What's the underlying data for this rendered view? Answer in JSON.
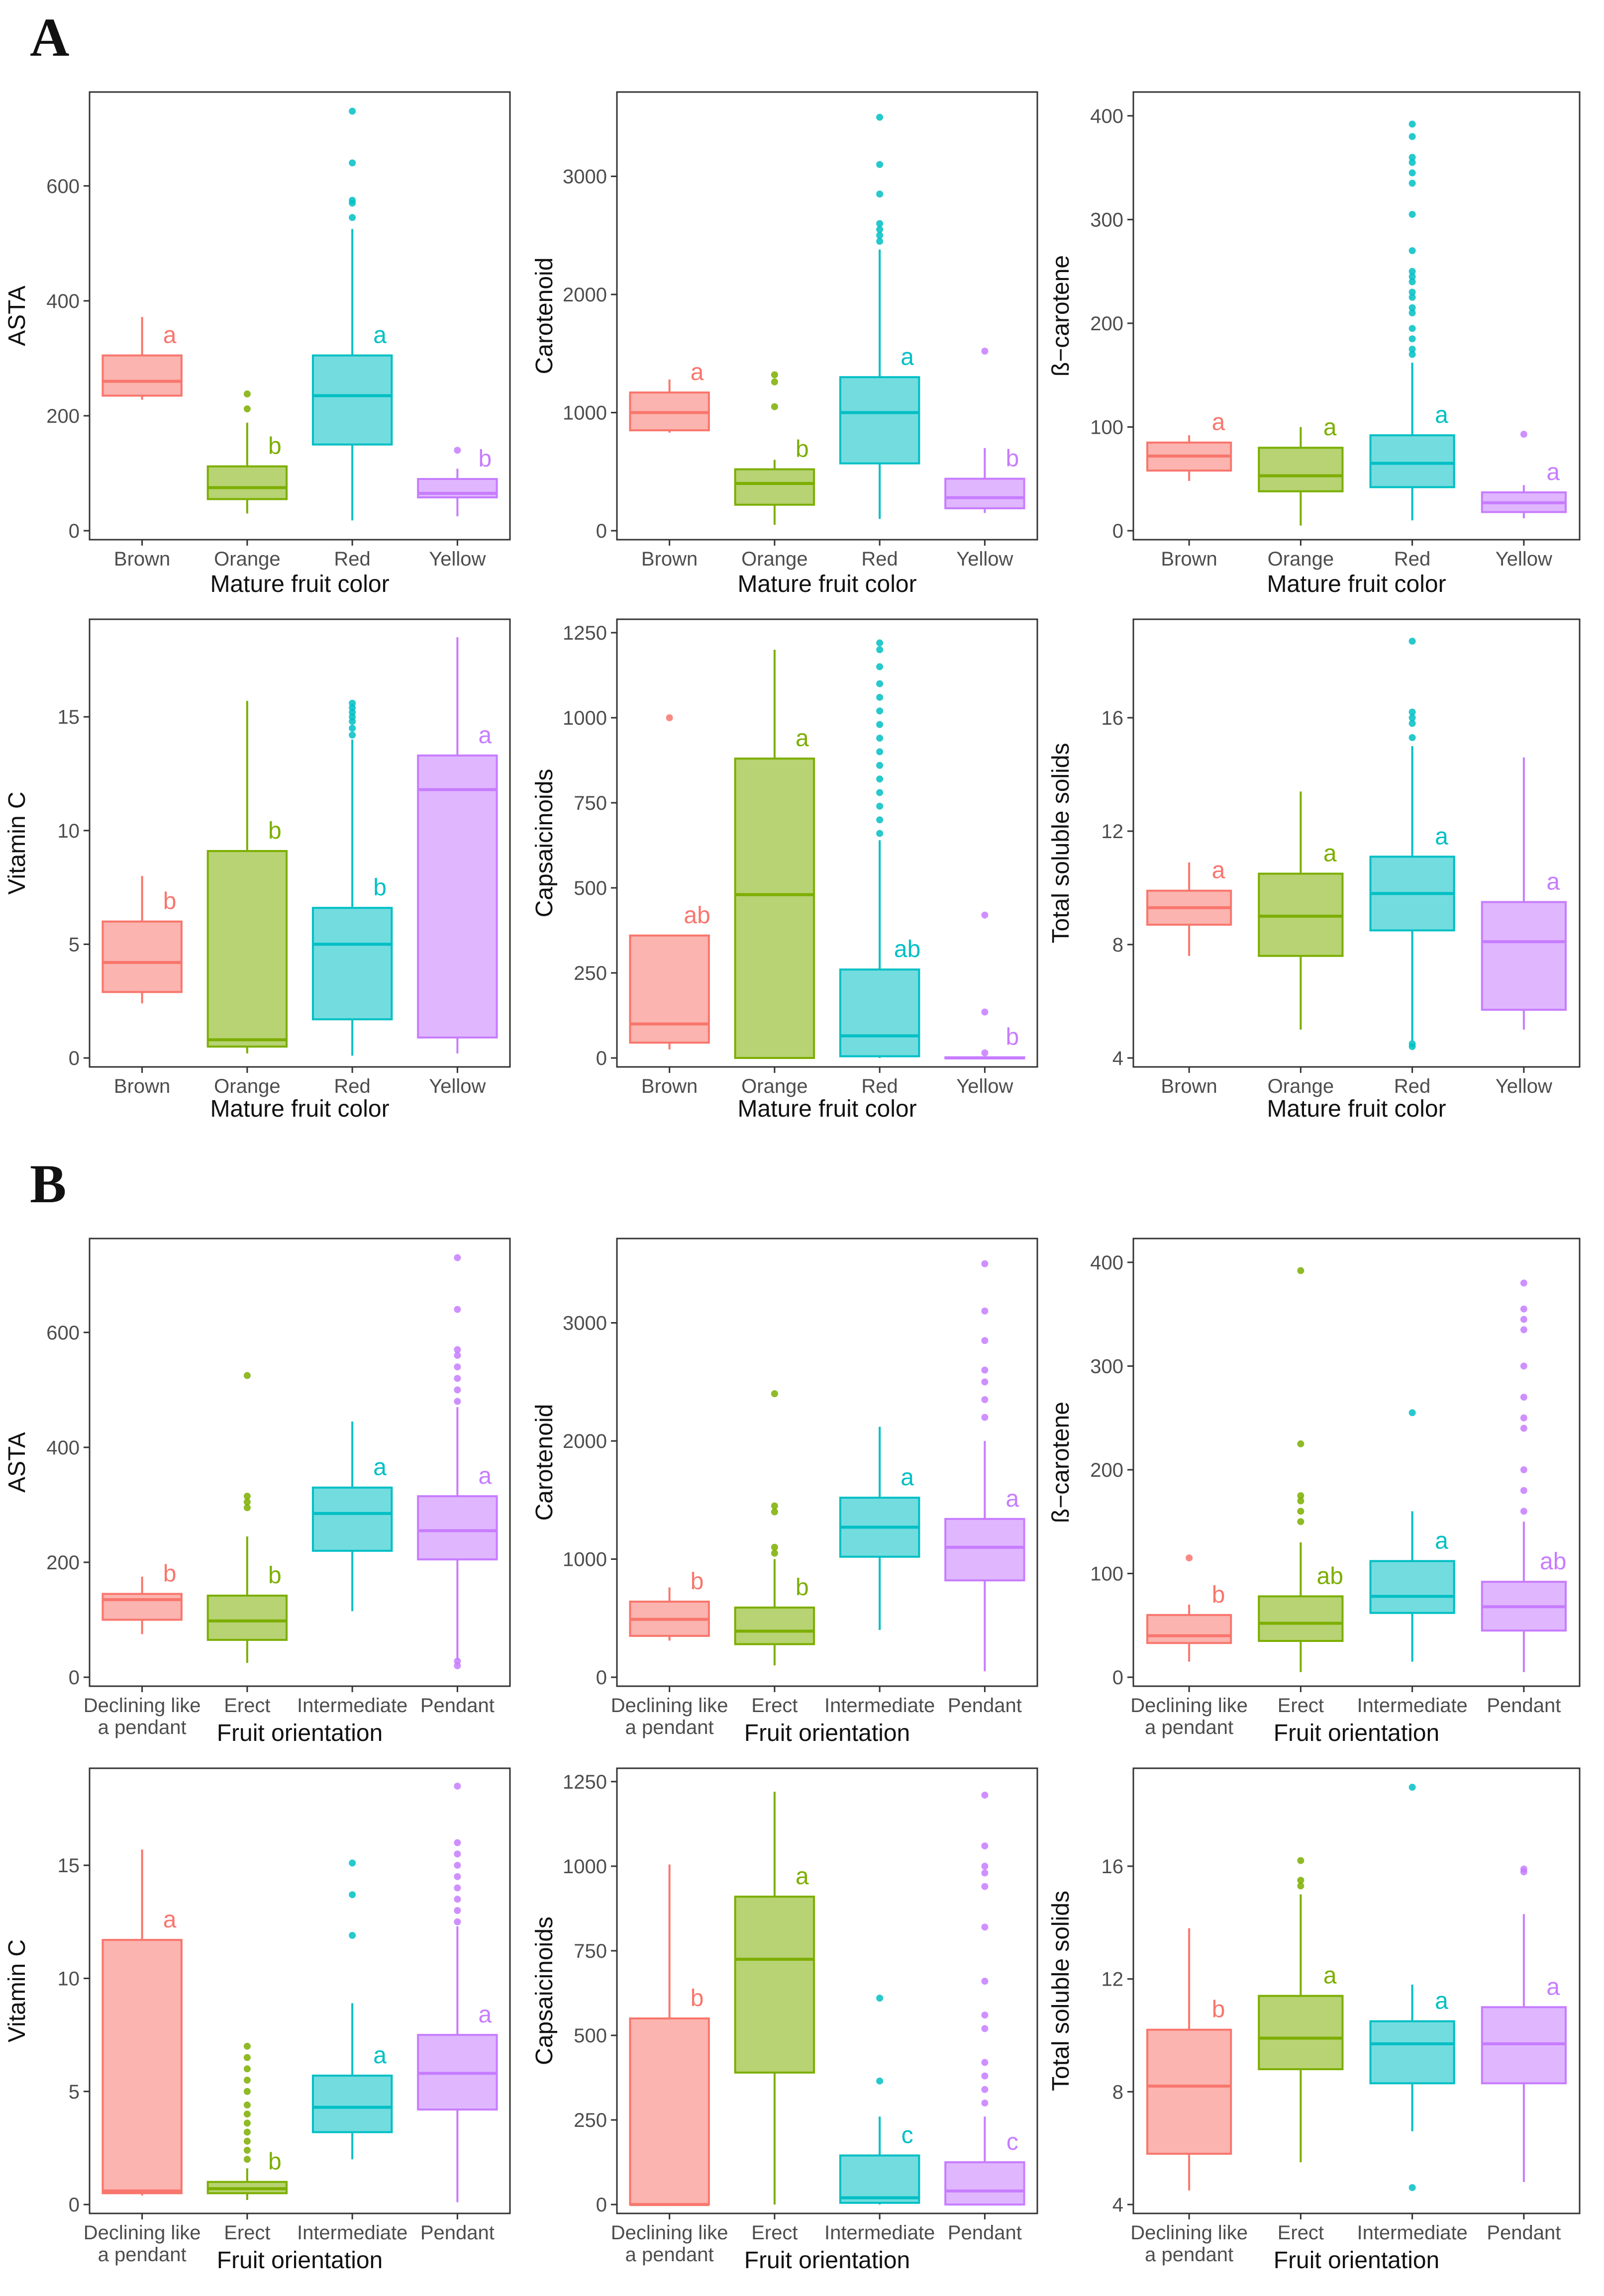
{
  "figure": {
    "colors": {
      "Brown": "#F8766D",
      "Orange": "#7CAE00",
      "Red": "#00BFC4",
      "Yellow": "#C77CFF"
    },
    "orientation_colors": {
      "Declining like a pendant": "#F8766D",
      "Erect": "#7CAE00",
      "Intermediate": "#00BFC4",
      "Pendant": "#C77CFF"
    }
  },
  "panels": [
    {
      "label": "A",
      "xlabel": "Mature fruit color"
    },
    {
      "label": "B",
      "xlabel": "Fruit orientation"
    }
  ],
  "chart_data": [
    {
      "type": "box",
      "panel": "A",
      "title": "",
      "ylabel": "ASTA",
      "xlabel": "Mature fruit color",
      "ylim": [
        0,
        740
      ],
      "yticks": [
        0,
        200,
        400,
        600
      ],
      "categories": [
        "Brown",
        "Orange",
        "Red",
        "Yellow"
      ],
      "boxes": [
        {
          "q1": 235,
          "median": 260,
          "q3": 305,
          "lo": 228,
          "hi": 372,
          "outliers": [],
          "letter": "a"
        },
        {
          "q1": 55,
          "median": 75,
          "q3": 112,
          "lo": 30,
          "hi": 188,
          "outliers": [
            212,
            238
          ],
          "letter": "b"
        },
        {
          "q1": 150,
          "median": 235,
          "q3": 305,
          "lo": 18,
          "hi": 525,
          "outliers": [
            545,
            570,
            575,
            640,
            730
          ],
          "letter": "a"
        },
        {
          "q1": 58,
          "median": 65,
          "q3": 90,
          "lo": 25,
          "hi": 108,
          "outliers": [
            140
          ],
          "letter": "b"
        }
      ]
    },
    {
      "type": "box",
      "panel": "A",
      "title": "",
      "ylabel": "Carotenoid",
      "xlabel": "Mature fruit color",
      "ylim": [
        0,
        3600
      ],
      "yticks": [
        0,
        1000,
        2000,
        3000
      ],
      "categories": [
        "Brown",
        "Orange",
        "Red",
        "Yellow"
      ],
      "boxes": [
        {
          "q1": 850,
          "median": 1000,
          "q3": 1170,
          "lo": 830,
          "hi": 1280,
          "outliers": [],
          "letter": "a"
        },
        {
          "q1": 220,
          "median": 400,
          "q3": 520,
          "lo": 50,
          "hi": 600,
          "outliers": [
            1050,
            1260,
            1320
          ],
          "letter": "b"
        },
        {
          "q1": 570,
          "median": 1000,
          "q3": 1300,
          "lo": 100,
          "hi": 2380,
          "outliers": [
            2450,
            2500,
            2550,
            2600,
            2850,
            3100,
            3500
          ],
          "letter": "a"
        },
        {
          "q1": 190,
          "median": 280,
          "q3": 440,
          "lo": 150,
          "hi": 700,
          "outliers": [
            1520
          ],
          "letter": "b"
        }
      ]
    },
    {
      "type": "box",
      "panel": "A",
      "title": "",
      "ylabel": "ß−carotene",
      "xlabel": "Mature fruit color",
      "ylim": [
        0,
        410
      ],
      "yticks": [
        0,
        100,
        200,
        300,
        400
      ],
      "categories": [
        "Brown",
        "Orange",
        "Red",
        "Yellow"
      ],
      "boxes": [
        {
          "q1": 58,
          "median": 72,
          "q3": 85,
          "lo": 48,
          "hi": 92,
          "outliers": [],
          "letter": "a"
        },
        {
          "q1": 38,
          "median": 53,
          "q3": 80,
          "lo": 5,
          "hi": 100,
          "outliers": [],
          "letter": "a"
        },
        {
          "q1": 42,
          "median": 65,
          "q3": 92,
          "lo": 10,
          "hi": 162,
          "outliers": [
            170,
            175,
            185,
            195,
            210,
            215,
            225,
            230,
            240,
            245,
            250,
            270,
            305,
            335,
            345,
            355,
            360,
            380,
            392
          ],
          "letter": "a"
        },
        {
          "q1": 18,
          "median": 27,
          "q3": 37,
          "lo": 12,
          "hi": 44,
          "outliers": [
            93
          ],
          "letter": "a"
        }
      ]
    },
    {
      "type": "box",
      "panel": "A",
      "title": "",
      "ylabel": "Vitamin C",
      "xlabel": "Mature fruit color",
      "ylim": [
        0,
        18.7
      ],
      "yticks": [
        0,
        5,
        10,
        15
      ],
      "categories": [
        "Brown",
        "Orange",
        "Red",
        "Yellow"
      ],
      "boxes": [
        {
          "q1": 2.9,
          "median": 4.2,
          "q3": 6.0,
          "lo": 2.4,
          "hi": 8.0,
          "outliers": [],
          "letter": "b"
        },
        {
          "q1": 0.5,
          "median": 0.8,
          "q3": 9.1,
          "lo": 0.2,
          "hi": 15.7,
          "outliers": [],
          "letter": "b"
        },
        {
          "q1": 1.7,
          "median": 5.0,
          "q3": 6.6,
          "lo": 0.1,
          "hi": 14.0,
          "outliers": [
            14.2,
            14.5,
            14.8,
            15.0,
            15.2,
            15.4,
            15.6
          ],
          "letter": "b"
        },
        {
          "q1": 0.9,
          "median": 11.8,
          "q3": 13.3,
          "lo": 0.2,
          "hi": 18.5,
          "outliers": [],
          "letter": "a"
        }
      ]
    },
    {
      "type": "box",
      "panel": "A",
      "title": "",
      "ylabel": "Capsaicinoids",
      "xlabel": "Mature fruit color",
      "ylim": [
        0,
        1250
      ],
      "yticks": [
        0,
        250,
        500,
        750,
        1000,
        1250
      ],
      "categories": [
        "Brown",
        "Orange",
        "Red",
        "Yellow"
      ],
      "boxes": [
        {
          "q1": 45,
          "median": 100,
          "q3": 360,
          "lo": 25,
          "hi": 360,
          "outliers": [
            1000
          ],
          "letter": "ab"
        },
        {
          "q1": 0,
          "median": 480,
          "q3": 880,
          "lo": 0,
          "hi": 1200,
          "outliers": [],
          "letter": "a"
        },
        {
          "q1": 5,
          "median": 65,
          "q3": 260,
          "lo": 0,
          "hi": 640,
          "outliers": [
            660,
            700,
            740,
            780,
            820,
            860,
            900,
            940,
            980,
            1020,
            1060,
            1100,
            1150,
            1200,
            1220
          ],
          "letter": "ab"
        },
        {
          "q1": 0,
          "median": 0,
          "q3": 2,
          "lo": 0,
          "hi": 5,
          "outliers": [
            15,
            135,
            420
          ],
          "letter": "b"
        }
      ]
    },
    {
      "type": "box",
      "panel": "A",
      "title": "",
      "ylabel": "Total soluble solids",
      "xlabel": "Mature fruit color",
      "ylim": [
        4,
        19
      ],
      "yticks": [
        4,
        8,
        12,
        16
      ],
      "categories": [
        "Brown",
        "Orange",
        "Red",
        "Yellow"
      ],
      "boxes": [
        {
          "q1": 8.7,
          "median": 9.3,
          "q3": 9.9,
          "lo": 7.6,
          "hi": 10.9,
          "outliers": [],
          "letter": "a"
        },
        {
          "q1": 7.6,
          "median": 9.0,
          "q3": 10.5,
          "lo": 5.0,
          "hi": 13.4,
          "outliers": [],
          "letter": "a"
        },
        {
          "q1": 8.5,
          "median": 9.8,
          "q3": 11.1,
          "lo": 4.6,
          "hi": 15.0,
          "outliers": [
            4.4,
            4.5,
            15.3,
            15.8,
            16.0,
            16.2,
            18.7
          ],
          "letter": "a"
        },
        {
          "q1": 5.7,
          "median": 8.1,
          "q3": 9.5,
          "lo": 5.0,
          "hi": 14.6,
          "outliers": [],
          "letter": "a"
        }
      ]
    },
    {
      "type": "box",
      "panel": "B",
      "title": "",
      "ylabel": "ASTA",
      "xlabel": "Fruit orientation",
      "ylim": [
        0,
        740
      ],
      "yticks": [
        0,
        200,
        400,
        600
      ],
      "categories": [
        "Declining like\na pendant",
        "Erect",
        "Intermediate",
        "Pendant"
      ],
      "boxes": [
        {
          "q1": 100,
          "median": 135,
          "q3": 145,
          "lo": 75,
          "hi": 175,
          "outliers": [],
          "letter": "b"
        },
        {
          "q1": 65,
          "median": 98,
          "q3": 142,
          "lo": 25,
          "hi": 245,
          "outliers": [
            295,
            305,
            315,
            525
          ],
          "letter": "b"
        },
        {
          "q1": 220,
          "median": 285,
          "q3": 330,
          "lo": 115,
          "hi": 445,
          "outliers": [],
          "letter": "a"
        },
        {
          "q1": 205,
          "median": 255,
          "q3": 315,
          "lo": 30,
          "hi": 470,
          "outliers": [
            20,
            28,
            480,
            500,
            520,
            540,
            560,
            570,
            640,
            730
          ],
          "letter": "a"
        }
      ]
    },
    {
      "type": "box",
      "panel": "B",
      "title": "",
      "ylabel": "Carotenoid",
      "xlabel": "Fruit orientation",
      "ylim": [
        0,
        3600
      ],
      "yticks": [
        0,
        1000,
        2000,
        3000
      ],
      "categories": [
        "Declining like\na pendant",
        "Erect",
        "Intermediate",
        "Pendant"
      ],
      "boxes": [
        {
          "q1": 350,
          "median": 490,
          "q3": 640,
          "lo": 310,
          "hi": 760,
          "outliers": [],
          "letter": "b"
        },
        {
          "q1": 280,
          "median": 390,
          "q3": 590,
          "lo": 100,
          "hi": 1000,
          "outliers": [
            1050,
            1100,
            1400,
            1450,
            2400
          ],
          "letter": "b"
        },
        {
          "q1": 1020,
          "median": 1270,
          "q3": 1520,
          "lo": 400,
          "hi": 2120,
          "outliers": [],
          "letter": "a"
        },
        {
          "q1": 820,
          "median": 1100,
          "q3": 1340,
          "lo": 50,
          "hi": 2000,
          "outliers": [
            2200,
            2350,
            2500,
            2600,
            2850,
            3100,
            3500
          ],
          "letter": "a"
        }
      ]
    },
    {
      "type": "box",
      "panel": "B",
      "title": "",
      "ylabel": "ß−carotene",
      "xlabel": "Fruit orientation",
      "ylim": [
        0,
        410
      ],
      "yticks": [
        0,
        100,
        200,
        300,
        400
      ],
      "categories": [
        "Declining like\na pendant",
        "Erect",
        "Intermediate",
        "Pendant"
      ],
      "boxes": [
        {
          "q1": 33,
          "median": 40,
          "q3": 60,
          "lo": 15,
          "hi": 70,
          "outliers": [
            115
          ],
          "letter": "b"
        },
        {
          "q1": 35,
          "median": 52,
          "q3": 78,
          "lo": 5,
          "hi": 130,
          "outliers": [
            150,
            160,
            170,
            175,
            225,
            392
          ],
          "letter": "ab"
        },
        {
          "q1": 62,
          "median": 78,
          "q3": 112,
          "lo": 15,
          "hi": 160,
          "outliers": [
            255
          ],
          "letter": "a"
        },
        {
          "q1": 45,
          "median": 68,
          "q3": 92,
          "lo": 5,
          "hi": 150,
          "outliers": [
            160,
            180,
            200,
            240,
            250,
            270,
            300,
            335,
            345,
            355,
            380
          ],
          "letter": "ab"
        }
      ]
    },
    {
      "type": "box",
      "panel": "B",
      "title": "",
      "ylabel": "Vitamin C",
      "xlabel": "Fruit orientation",
      "ylim": [
        0,
        18.7
      ],
      "yticks": [
        0,
        5,
        10,
        15
      ],
      "categories": [
        "Declining like\na pendant",
        "Erect",
        "Intermediate",
        "Pendant"
      ],
      "boxes": [
        {
          "q1": 0.5,
          "median": 0.6,
          "q3": 11.7,
          "lo": 0.4,
          "hi": 15.7,
          "outliers": [],
          "letter": "a"
        },
        {
          "q1": 0.5,
          "median": 0.7,
          "q3": 1.0,
          "lo": 0.2,
          "hi": 1.6,
          "outliers": [
            2.0,
            2.4,
            2.8,
            3.2,
            3.6,
            4.0,
            4.4,
            5.0,
            5.5,
            6.0,
            6.5,
            7.0
          ],
          "letter": "b"
        },
        {
          "q1": 3.2,
          "median": 4.3,
          "q3": 5.7,
          "lo": 2.0,
          "hi": 8.9,
          "outliers": [
            11.9,
            13.7,
            15.1
          ],
          "letter": "a"
        },
        {
          "q1": 4.2,
          "median": 5.8,
          "q3": 7.5,
          "lo": 0.1,
          "hi": 12.3,
          "outliers": [
            12.5,
            13.0,
            13.5,
            14.0,
            14.5,
            15.0,
            15.5,
            16.0,
            18.5
          ],
          "letter": "a"
        }
      ]
    },
    {
      "type": "box",
      "panel": "B",
      "title": "",
      "ylabel": "Capsaicinoids",
      "xlabel": "Fruit orientation",
      "ylim": [
        0,
        1250
      ],
      "yticks": [
        0,
        250,
        500,
        750,
        1000,
        1250
      ],
      "categories": [
        "Declining like\na pendant",
        "Erect",
        "Intermediate",
        "Pendant"
      ],
      "boxes": [
        {
          "q1": 0,
          "median": 0,
          "q3": 550,
          "lo": 0,
          "hi": 1005,
          "outliers": [],
          "letter": "b"
        },
        {
          "q1": 390,
          "median": 725,
          "q3": 910,
          "lo": 0,
          "hi": 1220,
          "outliers": [],
          "letter": "a"
        },
        {
          "q1": 5,
          "median": 20,
          "q3": 145,
          "lo": 0,
          "hi": 260,
          "outliers": [
            365,
            610
          ],
          "letter": "c"
        },
        {
          "q1": 0,
          "median": 40,
          "q3": 125,
          "lo": 0,
          "hi": 260,
          "outliers": [
            300,
            340,
            380,
            420,
            520,
            560,
            660,
            820,
            940,
            980,
            1000,
            1060,
            1210
          ],
          "letter": "c"
        }
      ]
    },
    {
      "type": "box",
      "panel": "B",
      "title": "",
      "ylabel": "Total soluble solids",
      "xlabel": "Fruit orientation",
      "ylim": [
        4,
        19
      ],
      "yticks": [
        4,
        8,
        12,
        16
      ],
      "categories": [
        "Declining like\na pendant",
        "Erect",
        "Intermediate",
        "Pendant"
      ],
      "boxes": [
        {
          "q1": 5.8,
          "median": 8.2,
          "q3": 10.2,
          "lo": 4.5,
          "hi": 13.8,
          "outliers": [],
          "letter": "b"
        },
        {
          "q1": 8.8,
          "median": 9.9,
          "q3": 11.4,
          "lo": 5.5,
          "hi": 15.0,
          "outliers": [
            15.3,
            15.5,
            16.2
          ],
          "letter": "a"
        },
        {
          "q1": 8.3,
          "median": 9.7,
          "q3": 10.5,
          "lo": 6.6,
          "hi": 11.8,
          "outliers": [
            4.6,
            18.8
          ],
          "letter": "a"
        },
        {
          "q1": 8.3,
          "median": 9.7,
          "q3": 11.0,
          "lo": 4.8,
          "hi": 14.3,
          "outliers": [
            15.8,
            15.9
          ],
          "letter": "a"
        }
      ]
    }
  ]
}
